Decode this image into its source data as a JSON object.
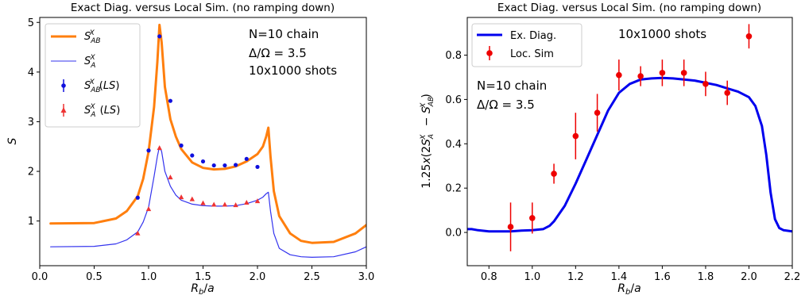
{
  "chart_data": [
    {
      "type": "line",
      "title": "Exact Diag. versus Local Sim. (no ramping down)",
      "xlabel": "R_b/a",
      "ylabel": "S",
      "xlim": [
        0.0,
        3.0
      ],
      "ylim": [
        0.1,
        5.1
      ],
      "xticks": [
        0.0,
        0.5,
        1.0,
        1.5,
        2.0,
        2.5,
        3.0
      ],
      "xtick_labels": [
        "0.0",
        "0.5",
        "1.0",
        "1.5",
        "2.0",
        "2.5",
        "3.0"
      ],
      "yticks": [
        1,
        2,
        3,
        4,
        5
      ],
      "ytick_labels": [
        "1",
        "2",
        "3",
        "4",
        "5"
      ],
      "grid": false,
      "legend_position": "top-left",
      "annotations": [
        "N=10 chain",
        "Δ/Ω = 3.5",
        "10x1000 shots"
      ],
      "series": [
        {
          "name": "S^X_AB",
          "kind": "line",
          "color": "#ff7f0e",
          "x": [
            0.1,
            0.5,
            0.7,
            0.8,
            0.9,
            0.95,
            1.0,
            1.05,
            1.08,
            1.1,
            1.12,
            1.15,
            1.2,
            1.25,
            1.3,
            1.4,
            1.5,
            1.6,
            1.7,
            1.8,
            1.9,
            2.0,
            2.05,
            2.08,
            2.1,
            2.12,
            2.15,
            2.2,
            2.3,
            2.4,
            2.5,
            2.7,
            2.9,
            3.0
          ],
          "y": [
            0.95,
            0.96,
            1.05,
            1.2,
            1.5,
            1.85,
            2.4,
            3.3,
            4.2,
            4.95,
            4.6,
            3.7,
            3.05,
            2.7,
            2.45,
            2.18,
            2.07,
            2.04,
            2.05,
            2.1,
            2.2,
            2.35,
            2.5,
            2.7,
            2.88,
            2.3,
            1.6,
            1.1,
            0.75,
            0.6,
            0.56,
            0.58,
            0.75,
            0.92
          ]
        },
        {
          "name": "S^X_A",
          "kind": "line",
          "color": "#3333ee",
          "x": [
            0.1,
            0.5,
            0.7,
            0.8,
            0.9,
            0.95,
            1.0,
            1.05,
            1.08,
            1.1,
            1.12,
            1.15,
            1.2,
            1.25,
            1.3,
            1.4,
            1.5,
            1.6,
            1.7,
            1.8,
            1.9,
            2.0,
            2.05,
            2.08,
            2.1,
            2.12,
            2.15,
            2.2,
            2.3,
            2.4,
            2.5,
            2.7,
            2.9,
            3.0
          ],
          "y": [
            0.48,
            0.49,
            0.54,
            0.62,
            0.78,
            0.98,
            1.28,
            1.9,
            2.3,
            2.5,
            2.4,
            2.0,
            1.7,
            1.52,
            1.42,
            1.34,
            1.31,
            1.3,
            1.3,
            1.31,
            1.35,
            1.42,
            1.48,
            1.55,
            1.58,
            1.2,
            0.75,
            0.45,
            0.32,
            0.28,
            0.27,
            0.28,
            0.38,
            0.48
          ]
        },
        {
          "name": "S^X_AB(LS)",
          "kind": "points",
          "marker": "circle",
          "color": "#1010dd",
          "x": [
            0.9,
            1.0,
            1.1,
            1.2,
            1.3,
            1.4,
            1.5,
            1.6,
            1.7,
            1.8,
            1.9,
            2.0
          ],
          "y": [
            1.47,
            2.42,
            4.72,
            3.42,
            2.52,
            2.32,
            2.2,
            2.12,
            2.12,
            2.13,
            2.25,
            2.09
          ]
        },
        {
          "name": "S^X_A(LS)",
          "kind": "points",
          "marker": "triangle",
          "color": "#ee3333",
          "x": [
            0.9,
            1.0,
            1.1,
            1.2,
            1.3,
            1.4,
            1.5,
            1.6,
            1.7,
            1.8,
            1.9,
            2.0
          ],
          "y": [
            0.75,
            1.24,
            2.47,
            1.88,
            1.48,
            1.44,
            1.36,
            1.33,
            1.33,
            1.32,
            1.37,
            1.4
          ]
        }
      ]
    },
    {
      "type": "line",
      "title": "Exact Diag. versus Local Sim. (no ramping down)",
      "xlabel": "R_b/a",
      "ylabel": "1.25x(2S^X_A − S^X_AB)",
      "xlim": [
        0.7,
        2.2
      ],
      "ylim": [
        -0.15,
        0.97
      ],
      "xticks": [
        0.8,
        1.0,
        1.2,
        1.4,
        1.6,
        1.8,
        2.0,
        2.2
      ],
      "xtick_labels": [
        "0.8",
        "1.0",
        "1.2",
        "1.4",
        "1.6",
        "1.8",
        "2.0",
        "2.2"
      ],
      "yticks": [
        0.0,
        0.2,
        0.4,
        0.6,
        0.8
      ],
      "ytick_labels": [
        "0.0",
        "0.2",
        "0.4",
        "0.6",
        "0.8"
      ],
      "grid": false,
      "legend_position": "top-left",
      "annotations": [
        "10x1000 shots",
        "N=10 chain",
        "Δ/Ω = 3.5"
      ],
      "series": [
        {
          "name": "Ex. Diag.",
          "kind": "line",
          "color": "#0000ee",
          "x": [
            0.7,
            0.72,
            0.75,
            0.8,
            0.85,
            0.9,
            0.95,
            1.0,
            1.05,
            1.08,
            1.1,
            1.15,
            1.2,
            1.25,
            1.3,
            1.35,
            1.4,
            1.45,
            1.5,
            1.55,
            1.6,
            1.65,
            1.7,
            1.75,
            1.8,
            1.85,
            1.9,
            1.95,
            2.0,
            2.03,
            2.06,
            2.08,
            2.1,
            2.12,
            2.14,
            2.16,
            2.2
          ],
          "y": [
            0.015,
            0.015,
            0.01,
            0.005,
            0.005,
            0.005,
            0.008,
            0.01,
            0.015,
            0.03,
            0.05,
            0.12,
            0.22,
            0.33,
            0.44,
            0.55,
            0.63,
            0.67,
            0.69,
            0.695,
            0.697,
            0.695,
            0.69,
            0.685,
            0.675,
            0.665,
            0.65,
            0.635,
            0.61,
            0.57,
            0.48,
            0.35,
            0.18,
            0.06,
            0.02,
            0.01,
            0.005
          ]
        },
        {
          "name": "Loc. Sim",
          "kind": "errorbar",
          "marker": "circle",
          "color": "#ee0000",
          "x": [
            0.9,
            1.0,
            1.1,
            1.2,
            1.3,
            1.4,
            1.5,
            1.6,
            1.7,
            1.8,
            1.9,
            2.0
          ],
          "y": [
            0.025,
            0.065,
            0.265,
            0.435,
            0.54,
            0.71,
            0.705,
            0.72,
            0.72,
            0.67,
            0.63,
            0.885
          ],
          "yerr": [
            0.11,
            0.07,
            0.045,
            0.105,
            0.085,
            0.07,
            0.045,
            0.06,
            0.06,
            0.055,
            0.055,
            0.055
          ]
        }
      ]
    }
  ]
}
